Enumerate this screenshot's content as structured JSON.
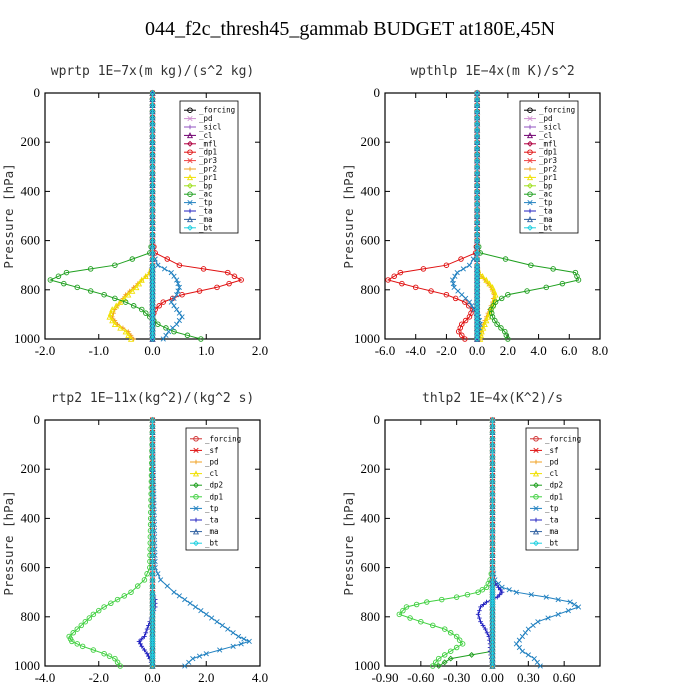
{
  "title": "044_f2c_thresh45_gammab  BUDGET at180E,45N",
  "chart_data": [
    {
      "type": "line",
      "title": "wprtp  1E−7x(m kg)/(s^2 kg)",
      "ylabel": "Pressure [hPa]",
      "xlim": [
        -2.0,
        2.0
      ],
      "ylim": [
        1000,
        0
      ],
      "xticks": [
        "-2.0",
        "-1.0",
        "0.0",
        "1.0",
        "2.0"
      ],
      "yticks": [
        "0",
        "200",
        "400",
        "600",
        "800",
        "1000"
      ],
      "legend_position": "top-right",
      "y": [
        0,
        600,
        650,
        700,
        730,
        760,
        790,
        820,
        850,
        880,
        910,
        940,
        970,
        1000
      ],
      "series": [
        {
          "name": "_forcing",
          "color": "#000000",
          "values": [
            0,
            0,
            0,
            0,
            0,
            0,
            0,
            0,
            0,
            0,
            0,
            0,
            0,
            0
          ]
        },
        {
          "name": "_pd",
          "color": "#d090d0",
          "values": [
            0,
            0,
            0,
            0,
            0,
            0,
            0,
            0,
            0,
            0,
            0,
            0,
            0,
            0
          ]
        },
        {
          "name": "_sicl",
          "color": "#9050c0",
          "values": [
            0,
            0,
            0,
            0,
            0,
            0,
            0,
            0,
            0,
            0,
            0,
            0,
            0,
            0
          ]
        },
        {
          "name": "_cl",
          "color": "#700070",
          "values": [
            0,
            0,
            0,
            0,
            0,
            0,
            0,
            0,
            0,
            0,
            0,
            0,
            0,
            0
          ]
        },
        {
          "name": "_mfl",
          "color": "#b00040",
          "values": [
            0,
            0,
            0,
            0,
            0,
            0,
            0,
            0,
            0,
            0,
            0,
            0,
            0,
            0
          ]
        },
        {
          "name": "_dp1",
          "color": "#e01010",
          "values": [
            0,
            0,
            0.05,
            0.5,
            1.4,
            1.65,
            1.2,
            0.55,
            0.2,
            0.05,
            0,
            0,
            0,
            0
          ]
        },
        {
          "name": "_pr3",
          "color": "#f04040",
          "values": [
            0,
            0,
            0,
            0,
            0,
            0,
            0,
            0,
            0,
            0,
            0,
            0,
            0,
            0
          ]
        },
        {
          "name": "_pr2",
          "color": "#f0a020",
          "values": [
            0,
            0,
            0,
            0,
            -0.05,
            -0.2,
            -0.35,
            -0.5,
            -0.6,
            -0.7,
            -0.75,
            -0.65,
            -0.45,
            -0.35
          ]
        },
        {
          "name": "_pr1",
          "color": "#f0e000",
          "values": [
            0,
            0,
            0,
            0,
            -0.05,
            -0.2,
            -0.3,
            -0.45,
            -0.6,
            -0.75,
            -0.8,
            -0.7,
            -0.5,
            -0.4
          ]
        },
        {
          "name": "_bp",
          "color": "#a0e020",
          "values": [
            0,
            0,
            0,
            0,
            0,
            0,
            0,
            0,
            0,
            0,
            0,
            0,
            0,
            0
          ]
        },
        {
          "name": "_ac",
          "color": "#20a020",
          "values": [
            0,
            0,
            -0.05,
            -0.7,
            -1.6,
            -1.9,
            -1.4,
            -0.9,
            -0.5,
            -0.2,
            -0.05,
            0.1,
            0.4,
            0.9
          ]
        },
        {
          "name": "_tp",
          "color": "#2080c0",
          "values": [
            0,
            0,
            0,
            0.1,
            0.35,
            0.45,
            0.5,
            0.45,
            0.35,
            0.45,
            0.55,
            0.45,
            0.3,
            0.2
          ]
        },
        {
          "name": "_ta",
          "color": "#2020c0",
          "values": [
            0,
            0,
            0,
            0,
            0,
            0,
            0,
            0,
            0,
            0,
            0,
            0,
            0,
            0
          ]
        },
        {
          "name": "_ma",
          "color": "#3060a0",
          "values": [
            0,
            0,
            0,
            0,
            0,
            0,
            0,
            0,
            0,
            0,
            0,
            0,
            0,
            0
          ]
        },
        {
          "name": "_bt",
          "color": "#20d0e0",
          "values": [
            0,
            0,
            0,
            0,
            0,
            0,
            0,
            0,
            0,
            0,
            0,
            0,
            0,
            0
          ]
        }
      ]
    },
    {
      "type": "line",
      "title": "wpthlp  1E−4x(m K)/s^2",
      "ylabel": "Pressure [hPa]",
      "xlim": [
        -6.0,
        8.0
      ],
      "ylim": [
        1000,
        0
      ],
      "xticks": [
        "-6.0",
        "-4.0",
        "-2.0",
        "0.0",
        "2.0",
        "4.0",
        "6.0",
        "8.0"
      ],
      "yticks": [
        "0",
        "200",
        "400",
        "600",
        "800",
        "1000"
      ],
      "legend_position": "top-right",
      "y": [
        0,
        600,
        650,
        700,
        730,
        760,
        790,
        820,
        850,
        880,
        910,
        940,
        970,
        1000
      ],
      "series": [
        {
          "name": "_forcing",
          "color": "#000000",
          "values": [
            0,
            0,
            0,
            0,
            0,
            0,
            0,
            0,
            0,
            0,
            0,
            0,
            0,
            0
          ]
        },
        {
          "name": "_pd",
          "color": "#d090d0",
          "values": [
            0,
            0,
            0,
            0,
            0,
            0,
            0,
            0,
            0,
            0,
            0,
            0,
            0,
            0
          ]
        },
        {
          "name": "_sicl",
          "color": "#9050c0",
          "values": [
            0,
            0,
            0,
            0,
            0,
            0,
            0,
            0,
            0,
            0,
            0,
            0,
            0,
            0
          ]
        },
        {
          "name": "_cl",
          "color": "#700070",
          "values": [
            0,
            0,
            0,
            0,
            0,
            0,
            0,
            0,
            0,
            0,
            0,
            0,
            0,
            0
          ]
        },
        {
          "name": "_mfl",
          "color": "#b00040",
          "values": [
            0,
            0,
            0,
            0,
            0,
            0,
            0,
            0,
            0,
            0,
            0,
            0,
            0,
            0
          ]
        },
        {
          "name": "_dp1",
          "color": "#e01010",
          "values": [
            0,
            0,
            -0.1,
            -2.0,
            -5.0,
            -5.8,
            -4.0,
            -2.0,
            -0.8,
            -0.3,
            -0.5,
            -1.0,
            -1.2,
            -0.8
          ]
        },
        {
          "name": "_pr3",
          "color": "#f04040",
          "values": [
            0,
            0,
            0,
            0,
            0,
            0,
            0,
            0,
            0,
            0,
            0,
            0,
            0,
            0
          ]
        },
        {
          "name": "_pr2",
          "color": "#f0a020",
          "values": [
            0,
            0,
            0,
            0,
            0.1,
            0.5,
            0.9,
            1.1,
            1.0,
            0.8,
            0.6,
            0.4,
            0.3,
            0.2
          ]
        },
        {
          "name": "_pr1",
          "color": "#f0e000",
          "values": [
            0,
            0,
            0,
            0,
            0.1,
            0.6,
            1.0,
            1.2,
            1.1,
            0.9,
            0.7,
            0.5,
            0.3,
            0.2
          ]
        },
        {
          "name": "_bp",
          "color": "#a0e020",
          "values": [
            0,
            0,
            0,
            0,
            0,
            0,
            0,
            0,
            0,
            0,
            0,
            0,
            0,
            0
          ]
        },
        {
          "name": "_ac",
          "color": "#20a020",
          "values": [
            0,
            0,
            0.2,
            3.5,
            6.4,
            6.6,
            4.5,
            2.0,
            1.2,
            0.9,
            1.0,
            1.3,
            1.8,
            2.0
          ]
        },
        {
          "name": "_tp",
          "color": "#2080c0",
          "values": [
            0,
            0,
            0,
            -0.5,
            -1.3,
            -1.6,
            -1.5,
            -1.0,
            -0.5,
            -0.2,
            0.1,
            0.2,
            0.1,
            0
          ]
        },
        {
          "name": "_ta",
          "color": "#2020c0",
          "values": [
            0,
            0,
            0,
            0,
            0,
            0,
            0,
            0,
            0,
            0,
            0,
            0,
            0,
            0
          ]
        },
        {
          "name": "_ma",
          "color": "#3060a0",
          "values": [
            0,
            0,
            0,
            0,
            0,
            0,
            0,
            0,
            0,
            0,
            0,
            0,
            0,
            0
          ]
        },
        {
          "name": "_bt",
          "color": "#20d0e0",
          "values": [
            0,
            0,
            0,
            0,
            0,
            0,
            0,
            0,
            0,
            0,
            0,
            0,
            0,
            0
          ]
        }
      ]
    },
    {
      "type": "line",
      "title": "rtp2  1E−11x(kg^2)/(kg^2 s)",
      "ylabel": "Pressure [hPa]",
      "xlim": [
        -4.0,
        4.0
      ],
      "ylim": [
        1000,
        0
      ],
      "xticks": [
        "-4.0",
        "-2.0",
        "0.0",
        "2.0",
        "4.0"
      ],
      "yticks": [
        "0",
        "200",
        "400",
        "600",
        "800",
        "1000"
      ],
      "legend_position": "top-right",
      "y": [
        0,
        600,
        650,
        700,
        730,
        760,
        790,
        820,
        850,
        880,
        900,
        920,
        950,
        970,
        1000
      ],
      "series": [
        {
          "name": "_forcing",
          "color": "#d03030",
          "values": [
            0,
            0,
            0,
            0,
            0,
            0,
            0,
            0,
            0,
            0,
            0,
            0,
            0,
            0,
            0
          ]
        },
        {
          "name": "_sf",
          "color": "#e01010",
          "values": [
            0,
            0,
            0,
            0,
            0,
            0,
            0,
            0,
            0,
            0,
            0,
            0,
            0,
            0,
            0
          ]
        },
        {
          "name": "_pd",
          "color": "#f0a020",
          "values": [
            0,
            0,
            0,
            0,
            0,
            0,
            0,
            0,
            0,
            0,
            0,
            0,
            0,
            0,
            0
          ]
        },
        {
          "name": "_cl",
          "color": "#f0e000",
          "values": [
            0,
            0,
            0,
            0,
            0,
            0,
            0,
            0,
            0,
            0,
            0,
            0,
            0,
            0,
            0
          ]
        },
        {
          "name": "_dp2",
          "color": "#20a020",
          "values": [
            0,
            0,
            0,
            0,
            0,
            0,
            0,
            0,
            0,
            0,
            0,
            0,
            0,
            0,
            0
          ]
        },
        {
          "name": "_dp1",
          "color": "#40d040",
          "values": [
            0,
            -0.1,
            -0.3,
            -0.8,
            -1.3,
            -1.8,
            -2.2,
            -2.5,
            -2.8,
            -3.1,
            -3.0,
            -2.6,
            -1.8,
            -1.4,
            -1.2
          ]
        },
        {
          "name": "_tp",
          "color": "#2080c0",
          "values": [
            0,
            0.1,
            0.3,
            0.8,
            1.2,
            1.6,
            2.0,
            2.4,
            2.8,
            3.2,
            3.6,
            3.0,
            2.0,
            1.5,
            1.2
          ]
        },
        {
          "name": "_ta",
          "color": "#2020c0",
          "values": [
            0,
            0,
            0,
            0,
            0.1,
            0.1,
            0,
            -0.1,
            -0.2,
            -0.3,
            -0.5,
            -0.4,
            -0.2,
            -0.1,
            0
          ]
        },
        {
          "name": "_ma",
          "color": "#3060a0",
          "values": [
            0,
            0,
            0,
            0,
            0,
            0,
            0,
            0,
            0,
            0,
            0,
            0,
            0,
            0,
            0
          ]
        },
        {
          "name": "_bt",
          "color": "#20d0e0",
          "values": [
            0,
            0,
            0,
            0,
            0,
            0,
            0,
            0,
            0,
            0,
            0,
            0,
            0,
            0,
            0
          ]
        }
      ]
    },
    {
      "type": "line",
      "title": "thlp2  1E−4x(K^2)/s",
      "ylabel": "Pressure [hPa]",
      "xlim": [
        -0.9,
        0.9
      ],
      "ylim": [
        1000,
        0
      ],
      "xticks": [
        "-0.90",
        "-0.60",
        "-0.30",
        "0.00",
        "0.30",
        "0.60"
      ],
      "yticks": [
        "0",
        "200",
        "400",
        "600",
        "800",
        "1000"
      ],
      "legend_position": "top-right",
      "y": [
        0,
        600,
        650,
        680,
        700,
        720,
        740,
        760,
        790,
        820,
        850,
        880,
        910,
        940,
        970,
        1000
      ],
      "series": [
        {
          "name": "_forcing",
          "color": "#d03030",
          "values": [
            0,
            0,
            0,
            0,
            0,
            0,
            0,
            0,
            0,
            0,
            0,
            0,
            0,
            0,
            0,
            0
          ]
        },
        {
          "name": "_sf",
          "color": "#e01010",
          "values": [
            0,
            0,
            0,
            0,
            0,
            0,
            0,
            0,
            0,
            0,
            0,
            0,
            0,
            0,
            0,
            0
          ]
        },
        {
          "name": "_pd",
          "color": "#f0a020",
          "values": [
            0,
            0,
            0,
            0,
            0,
            0,
            0,
            0,
            0,
            0,
            0,
            0,
            0,
            0,
            0,
            0
          ]
        },
        {
          "name": "_cl",
          "color": "#f0e000",
          "values": [
            0,
            0,
            0,
            0,
            0,
            0,
            0,
            0,
            0,
            0,
            0,
            0,
            0,
            0,
            0,
            0
          ]
        },
        {
          "name": "_dp2",
          "color": "#20a020",
          "values": [
            0,
            0,
            0,
            0,
            0,
            0,
            0,
            0,
            0,
            0,
            0,
            0,
            0,
            0,
            -0.35,
            -0.45
          ]
        },
        {
          "name": "_dp1",
          "color": "#40d040",
          "values": [
            0,
            0,
            -0.02,
            -0.05,
            -0.12,
            -0.3,
            -0.55,
            -0.72,
            -0.78,
            -0.6,
            -0.4,
            -0.3,
            -0.25,
            -0.35,
            -0.45,
            -0.5
          ]
        },
        {
          "name": "_tp",
          "color": "#2080c0",
          "values": [
            0,
            0,
            0.02,
            0.08,
            0.2,
            0.45,
            0.65,
            0.72,
            0.55,
            0.38,
            0.3,
            0.25,
            0.2,
            0.25,
            0.35,
            0.4
          ]
        },
        {
          "name": "_ta",
          "color": "#2020c0",
          "values": [
            0,
            0,
            0,
            0.05,
            0.08,
            0.04,
            -0.05,
            -0.1,
            -0.12,
            -0.1,
            -0.06,
            -0.03,
            -0.02,
            -0.02,
            -0.01,
            0
          ]
        },
        {
          "name": "_ma",
          "color": "#3060a0",
          "values": [
            0,
            0,
            0,
            0,
            0,
            0,
            0,
            0,
            0,
            0,
            0,
            0,
            0,
            0,
            0,
            0
          ]
        },
        {
          "name": "_bt",
          "color": "#20d0e0",
          "values": [
            0,
            0,
            0,
            0,
            0,
            0,
            0,
            0,
            0,
            0,
            0,
            0,
            0,
            0,
            0,
            0
          ]
        }
      ]
    }
  ]
}
